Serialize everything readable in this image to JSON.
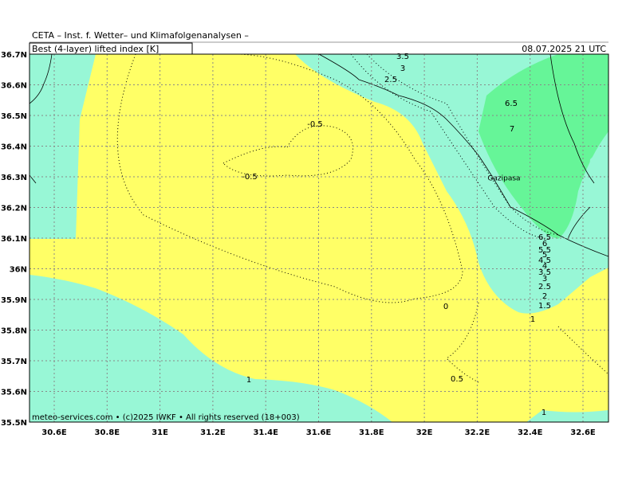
{
  "header": {
    "title": "CETA – Inst. f. Wetter– und Klimafolgenanalysen –",
    "parameter": "Best (4-layer) lifted index [K]",
    "datetime": "08.07.2025 21 UTC"
  },
  "axes": {
    "lat": [
      "36.7N",
      "36.6N",
      "36.5N",
      "36.4N",
      "36.3N",
      "36.2N",
      "36.1N",
      "36N",
      "35.9N",
      "35.8N",
      "35.7N",
      "35.6N",
      "35.5N"
    ],
    "lon": [
      "30.6E",
      "30.8E",
      "31E",
      "31.2E",
      "31.4E",
      "31.6E",
      "31.8E",
      "32E",
      "32.2E",
      "32.4E",
      "32.6E"
    ]
  },
  "contour_labels": [
    "3.5",
    "3",
    "2.5",
    "-0.5",
    "-0.5",
    "6.5",
    "7",
    "6.5",
    "6",
    "5.5",
    "5",
    "4.5",
    "4",
    "3.5",
    "3",
    "2.5",
    "2",
    "1.5",
    "1",
    "0",
    "0.5",
    "1",
    "1"
  ],
  "place_name": "Gazipasa",
  "footer": "meteo-services.com • (c)2025 IWKF • All rights reserved (18+003)"
}
